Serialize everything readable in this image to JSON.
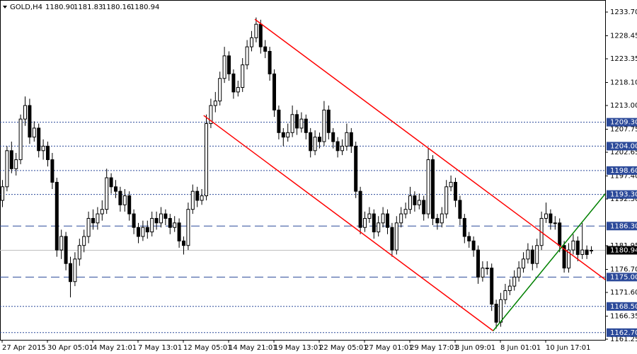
{
  "chart_data": {
    "type": "candlestick",
    "header": {
      "symbol": "GOLD,H4",
      "quote": [
        "1180.90",
        "1181.83",
        "1180.16",
        "1180.94"
      ]
    },
    "categories": [
      "27 Apr 2015",
      null,
      null,
      null,
      null,
      null,
      null,
      null,
      null,
      null,
      "30 Apr 05:01",
      null,
      null,
      null,
      null,
      null,
      null,
      null,
      null,
      null,
      "4 May 21:01",
      null,
      null,
      null,
      null,
      null,
      null,
      null,
      null,
      null,
      "7 May 13:01",
      null,
      null,
      null,
      null,
      null,
      null,
      null,
      null,
      null,
      "12 May 05:01",
      null,
      null,
      null,
      null,
      null,
      null,
      null,
      null,
      null,
      "14 May 21:01",
      null,
      null,
      null,
      null,
      null,
      null,
      null,
      null,
      null,
      "19 May 13:01",
      null,
      null,
      null,
      null,
      null,
      null,
      null,
      null,
      null,
      "22 May 05:01",
      null,
      null,
      null,
      null,
      null,
      null,
      null,
      null,
      null,
      "27 May 01:01",
      null,
      null,
      null,
      null,
      null,
      null,
      null,
      null,
      null,
      "29 May 17:01",
      null,
      null,
      null,
      null,
      null,
      null,
      null,
      null,
      null,
      "3 Jun 09:01",
      null,
      null,
      null,
      null,
      null,
      null,
      null,
      null,
      null,
      "8 Jun 01:01",
      null,
      null,
      null,
      null,
      null,
      null,
      null,
      null,
      null,
      "10 Jun 17:01",
      null,
      null,
      null,
      null,
      null,
      null,
      null,
      null,
      null,
      null
    ],
    "ohlc": [
      [
        1192,
        1196.5,
        1190.5,
        1195
      ],
      [
        1195,
        1204,
        1194,
        1203
      ],
      [
        1203,
        1205,
        1198,
        1199
      ],
      [
        1199,
        1202.5,
        1197.5,
        1201
      ],
      [
        1201,
        1211,
        1200,
        1210
      ],
      [
        1210,
        1215,
        1208.5,
        1213
      ],
      [
        1213,
        1214.5,
        1204.5,
        1206
      ],
      [
        1206,
        1209.5,
        1205,
        1208
      ],
      [
        1208,
        1209,
        1201.5,
        1203
      ],
      [
        1203,
        1205.5,
        1201,
        1204
      ],
      [
        1204,
        1205,
        1199.5,
        1201
      ],
      [
        1201,
        1202.5,
        1194.5,
        1196
      ],
      [
        1196,
        1197,
        1179.5,
        1181
      ],
      [
        1181,
        1185.5,
        1179,
        1184
      ],
      [
        1184,
        1185,
        1176.5,
        1178
      ],
      [
        1178,
        1179.5,
        1170.5,
        1174
      ],
      [
        1174,
        1180.5,
        1173,
        1179
      ],
      [
        1179,
        1183.5,
        1177.5,
        1182
      ],
      [
        1182,
        1185.5,
        1180.5,
        1184
      ],
      [
        1184,
        1189.5,
        1182.5,
        1188
      ],
      [
        1188,
        1190,
        1185.5,
        1187
      ],
      [
        1187,
        1190.5,
        1185.5,
        1189
      ],
      [
        1189,
        1192,
        1187.5,
        1190
      ],
      [
        1190,
        1199,
        1189,
        1197
      ],
      [
        1197,
        1198,
        1193.5,
        1195
      ],
      [
        1195,
        1196.5,
        1192.5,
        1194
      ],
      [
        1194,
        1195,
        1189.5,
        1191
      ],
      [
        1191,
        1194.5,
        1189.5,
        1193
      ],
      [
        1193,
        1194,
        1187.5,
        1189
      ],
      [
        1189,
        1190,
        1184.5,
        1186
      ],
      [
        1186,
        1187,
        1182.5,
        1184
      ],
      [
        1184,
        1187.5,
        1183,
        1186
      ],
      [
        1186,
        1187.5,
        1183.5,
        1185
      ],
      [
        1185,
        1189.5,
        1184,
        1188
      ],
      [
        1188,
        1189.5,
        1185.5,
        1187
      ],
      [
        1187,
        1190.5,
        1186,
        1189
      ],
      [
        1189,
        1190,
        1186.5,
        1188
      ],
      [
        1188,
        1189,
        1184.5,
        1186
      ],
      [
        1186,
        1188.5,
        1185,
        1187
      ],
      [
        1187,
        1188,
        1181.5,
        1183
      ],
      [
        1183,
        1184,
        1180,
        1182
      ],
      [
        1182,
        1191.5,
        1181,
        1190
      ],
      [
        1190,
        1195.5,
        1189,
        1194
      ],
      [
        1194,
        1195,
        1190.5,
        1192
      ],
      [
        1192,
        1194.5,
        1191,
        1193
      ],
      [
        1193,
        1211,
        1192,
        1209
      ],
      [
        1209,
        1214.5,
        1208,
        1213
      ],
      [
        1213,
        1216,
        1211.5,
        1214
      ],
      [
        1214,
        1220.5,
        1213,
        1219
      ],
      [
        1219,
        1226,
        1218,
        1224
      ],
      [
        1224,
        1225,
        1218.5,
        1220
      ],
      [
        1220,
        1221,
        1214.5,
        1216
      ],
      [
        1216,
        1218.5,
        1215,
        1217
      ],
      [
        1217,
        1223.5,
        1216,
        1222
      ],
      [
        1222,
        1227.5,
        1221,
        1226
      ],
      [
        1226,
        1229.5,
        1225,
        1228
      ],
      [
        1228,
        1232.5,
        1227,
        1231
      ],
      [
        1231,
        1232,
        1224.5,
        1226
      ],
      [
        1226,
        1227.5,
        1223.5,
        1225
      ],
      [
        1225,
        1226,
        1218.5,
        1220
      ],
      [
        1220,
        1221,
        1210.5,
        1212
      ],
      [
        1212,
        1213,
        1205.5,
        1207
      ],
      [
        1207,
        1208,
        1204,
        1206
      ],
      [
        1206,
        1209,
        1205,
        1207
      ],
      [
        1207,
        1213,
        1206,
        1211
      ],
      [
        1211,
        1212,
        1206.5,
        1208
      ],
      [
        1208,
        1211.5,
        1207,
        1210
      ],
      [
        1210,
        1211,
        1205.5,
        1207
      ],
      [
        1207,
        1208,
        1201.5,
        1203
      ],
      [
        1203,
        1207.5,
        1202,
        1206
      ],
      [
        1206,
        1207,
        1203.5,
        1205
      ],
      [
        1205,
        1214,
        1204,
        1212
      ],
      [
        1212,
        1213,
        1205.5,
        1207
      ],
      [
        1207,
        1208,
        1203.5,
        1205
      ],
      [
        1205,
        1206,
        1201.5,
        1203
      ],
      [
        1203,
        1205.5,
        1202,
        1204
      ],
      [
        1204,
        1209,
        1203,
        1207
      ],
      [
        1207,
        1208,
        1202.5,
        1204
      ],
      [
        1204,
        1205,
        1192.5,
        1194
      ],
      [
        1194,
        1195,
        1184.5,
        1186
      ],
      [
        1186,
        1189.5,
        1185,
        1188
      ],
      [
        1188,
        1190.5,
        1187,
        1189
      ],
      [
        1189,
        1190,
        1183.5,
        1185
      ],
      [
        1185,
        1188.5,
        1184,
        1187
      ],
      [
        1187,
        1190.5,
        1186,
        1189
      ],
      [
        1189,
        1190,
        1184.5,
        1186
      ],
      [
        1186,
        1187,
        1179.5,
        1181
      ],
      [
        1181,
        1188.5,
        1180,
        1187
      ],
      [
        1187,
        1190.5,
        1186,
        1189
      ],
      [
        1189,
        1191.5,
        1188,
        1190
      ],
      [
        1190,
        1195,
        1189,
        1193
      ],
      [
        1193,
        1194,
        1189.5,
        1191
      ],
      [
        1191,
        1193.5,
        1190,
        1192
      ],
      [
        1192,
        1193,
        1187.5,
        1189
      ],
      [
        1189,
        1203.5,
        1188,
        1201
      ],
      [
        1201,
        1202,
        1186.5,
        1188
      ],
      [
        1188,
        1189,
        1185.5,
        1187
      ],
      [
        1187,
        1190.5,
        1186,
        1189
      ],
      [
        1189,
        1196.5,
        1188,
        1195
      ],
      [
        1195,
        1197.5,
        1194,
        1196
      ],
      [
        1196,
        1197,
        1190.5,
        1192
      ],
      [
        1192,
        1193,
        1186.5,
        1188
      ],
      [
        1188,
        1189,
        1182.5,
        1184
      ],
      [
        1184,
        1185,
        1181.5,
        1183
      ],
      [
        1183,
        1184,
        1179.5,
        1181
      ],
      [
        1181,
        1182,
        1173.5,
        1175
      ],
      [
        1175,
        1178.5,
        1174,
        1177
      ],
      [
        1177,
        1178.5,
        1175.5,
        1177
      ],
      [
        1177,
        1178,
        1167.5,
        1169
      ],
      [
        1169,
        1170,
        1163.6,
        1165
      ],
      [
        1165,
        1171.5,
        1164,
        1170
      ],
      [
        1170,
        1173.5,
        1169,
        1172
      ],
      [
        1172,
        1174.5,
        1171,
        1173
      ],
      [
        1173,
        1176.5,
        1172,
        1175
      ],
      [
        1175,
        1178.5,
        1174,
        1177
      ],
      [
        1177,
        1180.5,
        1176,
        1179
      ],
      [
        1179,
        1182.5,
        1178,
        1181
      ],
      [
        1181,
        1182,
        1176.5,
        1178
      ],
      [
        1178,
        1183.5,
        1177,
        1182
      ],
      [
        1182,
        1189.5,
        1181,
        1188
      ],
      [
        1188,
        1191.5,
        1187,
        1189
      ],
      [
        1189,
        1190,
        1185.5,
        1187
      ],
      [
        1187,
        1188.5,
        1185.5,
        1187
      ],
      [
        1187,
        1188,
        1180.5,
        1182
      ],
      [
        1182,
        1183,
        1176,
        1177
      ],
      [
        1177,
        1182.5,
        1176,
        1181
      ],
      [
        1181,
        1184.5,
        1180,
        1183
      ],
      [
        1183,
        1184,
        1178.5,
        1180
      ],
      [
        1180,
        1187,
        1179,
        1181
      ],
      [
        1181,
        1182,
        1179,
        1180
      ],
      [
        1180.9,
        1181.83,
        1180.16,
        1180.94
      ]
    ],
    "ylim": [
      1161.1,
      1236.37
    ],
    "yticks": [
      {
        "value": 1233.7,
        "label": "1233.70"
      },
      {
        "value": 1228.45,
        "label": "1228.45"
      },
      {
        "value": 1223.35,
        "label": "1223.35"
      },
      {
        "value": 1218.1,
        "label": "1218.10"
      },
      {
        "value": 1213,
        "label": "1213.00"
      },
      {
        "value": 1207.75,
        "label": "1207.75"
      },
      {
        "value": 1202.65,
        "label": "1202.65"
      },
      {
        "value": 1197.4,
        "label": "1197.40"
      },
      {
        "value": 1192.3,
        "label": "1192.30"
      },
      {
        "value": 1181.95,
        "label": "1181.95"
      },
      {
        "value": 1176.7,
        "label": "1176.70"
      },
      {
        "value": 1171.6,
        "label": "1171.60"
      },
      {
        "value": 1166.35,
        "label": "1166.35"
      },
      {
        "value": 1161.25,
        "label": "1161.25"
      }
    ],
    "levels": [
      {
        "value": 1209.3,
        "label": "1209.30",
        "style": "dotted"
      },
      {
        "value": 1204,
        "label": "1204.00",
        "style": "dotted"
      },
      {
        "value": 1198.6,
        "label": "1198.60",
        "style": "dotted"
      },
      {
        "value": 1193.3,
        "label": "1193.30",
        "style": "dotted"
      },
      {
        "value": 1186.3,
        "label": "1186.30",
        "style": "dashed"
      },
      {
        "value": 1175,
        "label": "1175.00",
        "style": "dashed"
      },
      {
        "value": 1168.5,
        "label": "1168.50",
        "style": "dotted"
      },
      {
        "value": 1162.7,
        "label": "1162.70",
        "style": "dotted"
      }
    ],
    "level_color": "#2c4a9a",
    "current_price": {
      "value": 1180.94,
      "label": "1180.94"
    },
    "trendlines": [
      {
        "color": "#ff0000",
        "points": [
          [
            55.8,
            1232.1
          ],
          [
            133.6,
            1174.1
          ]
        ]
      },
      {
        "color": "#ff0000",
        "points": [
          [
            44.5,
            1210.8
          ],
          [
            108.4,
            1163.1
          ]
        ]
      },
      {
        "color": "#008000",
        "points": [
          [
            108.4,
            1163.1
          ],
          [
            133.6,
            1194.0
          ]
        ]
      }
    ]
  }
}
